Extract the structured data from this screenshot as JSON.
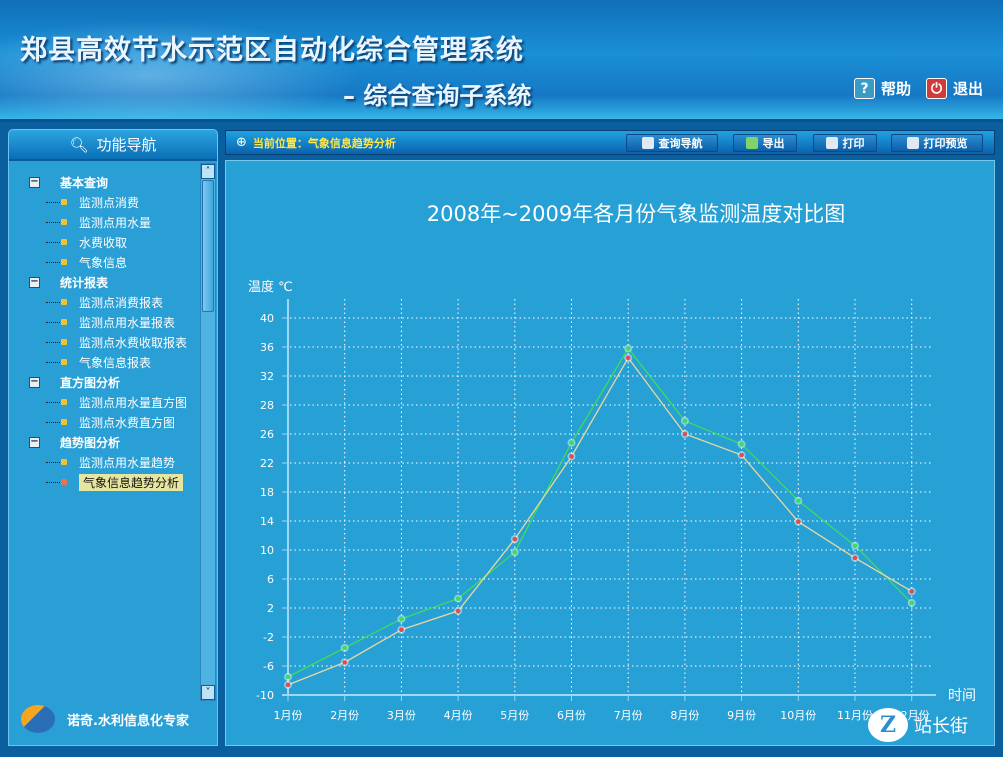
{
  "header": {
    "title": "郑县高效节水示范区自动化综合管理系统",
    "subtitle": "– 综合查询子系统",
    "help_label": "帮助",
    "exit_label": "退出"
  },
  "sidebar": {
    "title": "功能导航",
    "groups": [
      {
        "label": "基本查询",
        "items": [
          "监测点消费",
          "监测点用水量",
          "水费收取",
          "气象信息"
        ]
      },
      {
        "label": "统计报表",
        "items": [
          "监测点消费报表",
          "监测点用水量报表",
          "监测点水费收取报表",
          "气象信息报表"
        ]
      },
      {
        "label": "直方图分析",
        "items": [
          "监测点用水量直方图",
          "监测点水费直方图"
        ]
      },
      {
        "label": "趋势图分析",
        "items": [
          "监测点用水量趋势",
          "气象信息趋势分析"
        ]
      }
    ],
    "selected": "气象信息趋势分析",
    "brand": "诺奇.水利信息化专家"
  },
  "toolbar": {
    "breadcrumb": "当前位置：气象信息趋势分析",
    "query_nav": "查询导航",
    "export": "导出",
    "print": "打印",
    "print_preview": "打印预览"
  },
  "watermark": "站长街",
  "chart_data": {
    "type": "line",
    "title": "2008年~2009年各月份气象监测温度对比图",
    "ylabel": "温度 ℃",
    "xlabel": "时间",
    "categories": [
      "1月份",
      "2月份",
      "3月份",
      "4月份",
      "5月份",
      "6月份",
      "7月份",
      "8月份",
      "9月份",
      "10月份",
      "11月份",
      "12月份"
    ],
    "y_ticks": [
      40,
      36,
      32,
      28,
      26,
      22,
      18,
      14,
      10,
      6,
      2,
      -2,
      -6,
      -10
    ],
    "ylim": [
      -10,
      40
    ],
    "grid": true,
    "series": [
      {
        "color": "#3ddc5a",
        "values": [
          -7.5,
          -3.5,
          0.5,
          3.3,
          9.7,
          24.8,
          35.8,
          26.9,
          24.6,
          16.8,
          10.6,
          2.7
        ]
      },
      {
        "color": "#e8d89a",
        "marker_color": "#e84a4a",
        "values": [
          -8.6,
          -5.5,
          -1.0,
          1.6,
          11.5,
          22.9,
          34.5,
          26.0,
          23.1,
          13.9,
          8.9,
          4.3
        ]
      }
    ]
  }
}
